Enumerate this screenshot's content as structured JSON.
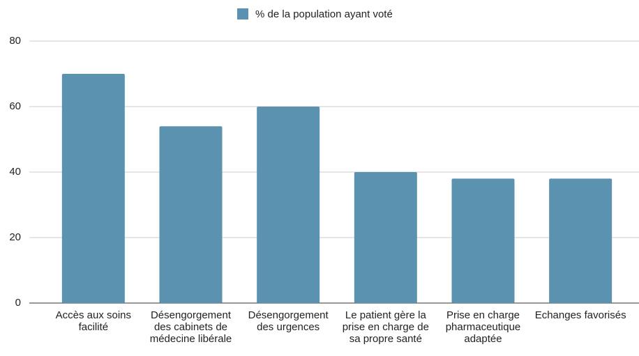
{
  "chart_data": {
    "type": "bar",
    "categories": [
      "Accès aux soins facilité",
      "Désengorgement des cabinets de médecine libérale",
      "Désengorgement des urgences",
      "Le patient gère la prise en charge de sa propre santé",
      "Prise en charge pharmaceutique adaptée",
      "Echanges favorisés"
    ],
    "series": [
      {
        "name": "% de la population ayant voté",
        "color": "#5a92af",
        "values": [
          70,
          54,
          60,
          40,
          38,
          38
        ]
      }
    ],
    "ylim": [
      0,
      80
    ],
    "yticks": [
      0,
      20,
      40,
      60,
      80
    ],
    "grid": true,
    "legend": "top"
  }
}
